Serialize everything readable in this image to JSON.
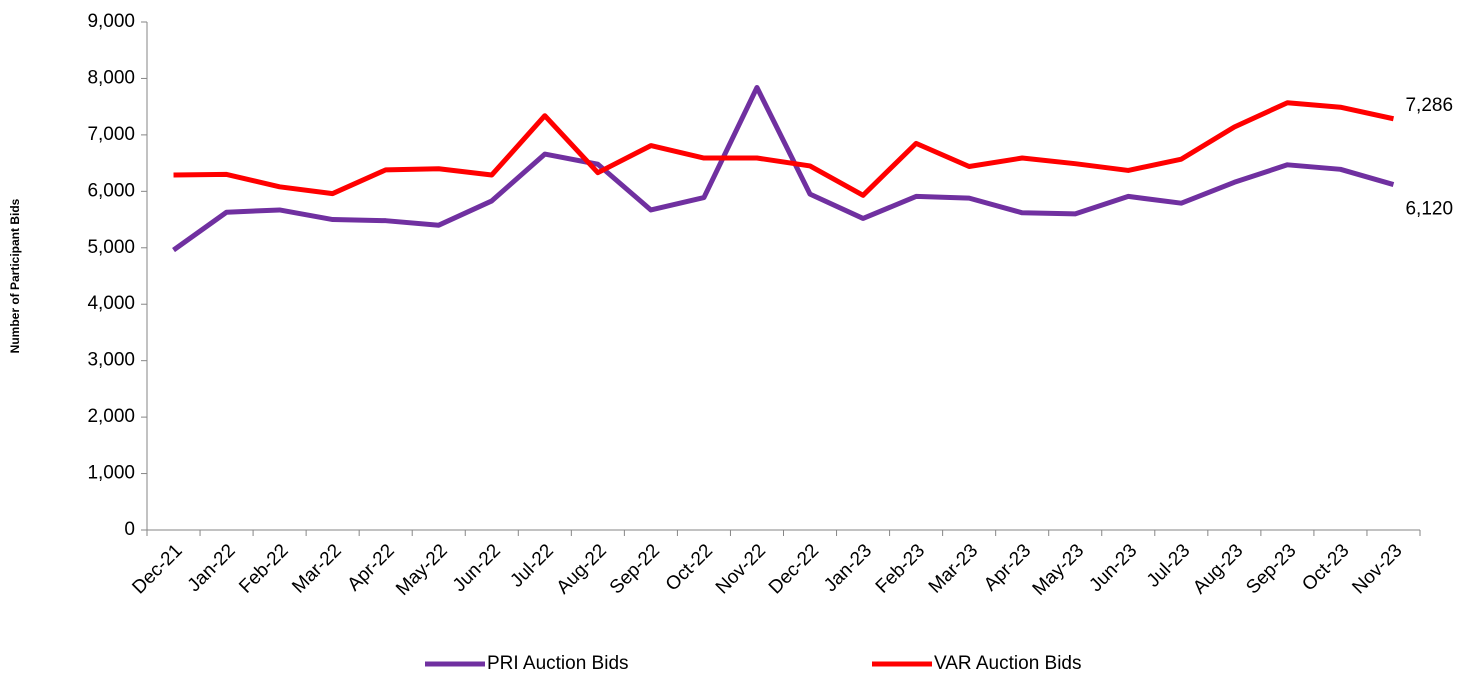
{
  "chart_data": {
    "type": "line",
    "y_label": "Number of Participant Bids",
    "categories": [
      "Dec-21",
      "Jan-22",
      "Feb-22",
      "Mar-22",
      "Apr-22",
      "May-22",
      "Jun-22",
      "Jul-22",
      "Aug-22",
      "Sep-22",
      "Oct-22",
      "Nov-22",
      "Dec-22",
      "Jan-23",
      "Feb-23",
      "Mar-23",
      "Apr-23",
      "May-23",
      "Jun-23",
      "Jul-23",
      "Aug-23",
      "Sep-23",
      "Oct-23",
      "Nov-23"
    ],
    "series": [
      {
        "name": "PRI Auction Bids",
        "color": "#7030a0",
        "values": [
          4960,
          5630,
          5670,
          5500,
          5480,
          5400,
          5830,
          6660,
          6480,
          5670,
          5890,
          7840,
          5950,
          5520,
          5910,
          5880,
          5620,
          5600,
          5910,
          5790,
          6160,
          6470,
          6390,
          6120
        ],
        "value_labels": [
          null,
          null,
          null,
          null,
          null,
          null,
          null,
          null,
          null,
          null,
          null,
          null,
          null,
          null,
          null,
          null,
          null,
          null,
          null,
          null,
          null,
          null,
          null,
          "6,120"
        ]
      },
      {
        "name": "VAR Auction Bids",
        "color": "#ff0000",
        "values": [
          6290,
          6300,
          6080,
          5960,
          6380,
          6400,
          6290,
          7340,
          6330,
          6810,
          6590,
          6590,
          6450,
          5930,
          6850,
          6440,
          6590,
          6490,
          6370,
          6570,
          7140,
          7570,
          7490,
          7286
        ],
        "value_labels": [
          null,
          null,
          null,
          null,
          null,
          null,
          null,
          null,
          null,
          null,
          null,
          null,
          null,
          null,
          null,
          null,
          null,
          null,
          null,
          null,
          null,
          null,
          null,
          "7,286"
        ]
      }
    ],
    "ylim": [
      0,
      9000
    ],
    "yticks": [
      0,
      {
        "value": 1000,
        "label": "1,000"
      },
      {
        "value": 2000,
        "label": "2,000"
      },
      {
        "value": 3000,
        "label": "3,000"
      },
      {
        "value": 4000,
        "label": "4,000"
      },
      {
        "value": 5000,
        "label": "5,000"
      },
      {
        "value": 6000,
        "label": "6,000"
      },
      {
        "value": 7000,
        "label": "7,000"
      },
      {
        "value": 8000,
        "label": "8,000"
      },
      {
        "value": 9000,
        "label": "9,000"
      }
    ],
    "grid": false,
    "legend": "bottom"
  }
}
